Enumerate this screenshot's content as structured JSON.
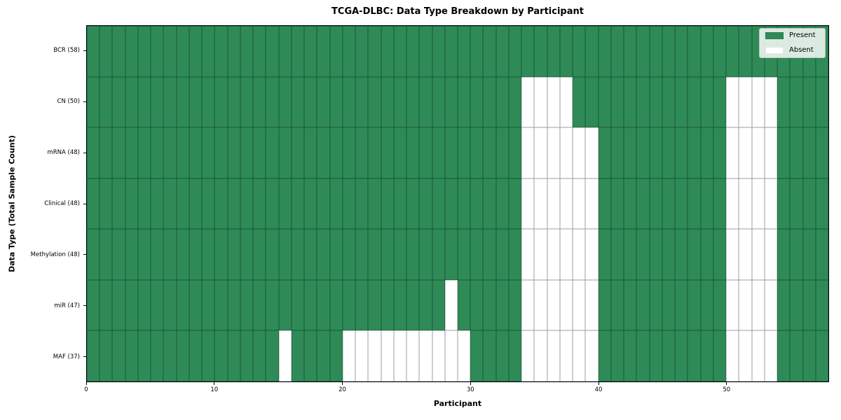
{
  "title": "TCGA-DLBC: Data Type Breakdown by Participant",
  "colors": {
    "present": "#2e8b57",
    "absent": "#ffffff",
    "cell_border": "rgba(0,0,0,0.38)",
    "frame": "#000000",
    "legend_background": "rgba(250,252,250,0.85)"
  },
  "chart_data": {
    "type": "heatmap",
    "title": "TCGA-DLBC: Data Type Breakdown by Participant",
    "xlabel": "Participant",
    "ylabel": "Data Type (Total Sample Count)",
    "n_participants": 58,
    "x_range": [
      0,
      58
    ],
    "x_ticks": [
      0,
      10,
      20,
      30,
      40,
      50
    ],
    "grid": "cell-edges",
    "legend_position": "upper-right",
    "legend": [
      {
        "key": "present",
        "label": "Present",
        "color": "#2e8b57"
      },
      {
        "key": "absent",
        "label": "Absent",
        "color": "#ffffff"
      }
    ],
    "value_encoding": {
      "present": 1,
      "absent": 0
    },
    "rows": [
      {
        "label": "BCR (58)",
        "data_type": "BCR",
        "present_count": 58,
        "absent_participants": []
      },
      {
        "label": "CN (50)",
        "data_type": "CN",
        "present_count": 50,
        "absent_participants": [
          34,
          35,
          36,
          37,
          50,
          51,
          52,
          53
        ]
      },
      {
        "label": "mRNA (48)",
        "data_type": "mRNA",
        "present_count": 48,
        "absent_participants": [
          34,
          35,
          36,
          37,
          38,
          39,
          50,
          51,
          52,
          53
        ]
      },
      {
        "label": "Clinical (48)",
        "data_type": "Clinical",
        "present_count": 48,
        "absent_participants": [
          34,
          35,
          36,
          37,
          38,
          39,
          50,
          51,
          52,
          53
        ]
      },
      {
        "label": "Methylation (48)",
        "data_type": "Methylation",
        "present_count": 48,
        "absent_participants": [
          34,
          35,
          36,
          37,
          38,
          39,
          50,
          51,
          52,
          53
        ]
      },
      {
        "label": "miR (47)",
        "data_type": "miR",
        "present_count": 47,
        "absent_participants": [
          28,
          34,
          35,
          36,
          37,
          38,
          39,
          50,
          51,
          52,
          53
        ]
      },
      {
        "label": "MAF (37)",
        "data_type": "MAF",
        "present_count": 37,
        "absent_participants": [
          15,
          20,
          21,
          22,
          23,
          24,
          25,
          26,
          27,
          28,
          29,
          34,
          35,
          36,
          37,
          38,
          39,
          50,
          51,
          52,
          53
        ]
      }
    ]
  }
}
